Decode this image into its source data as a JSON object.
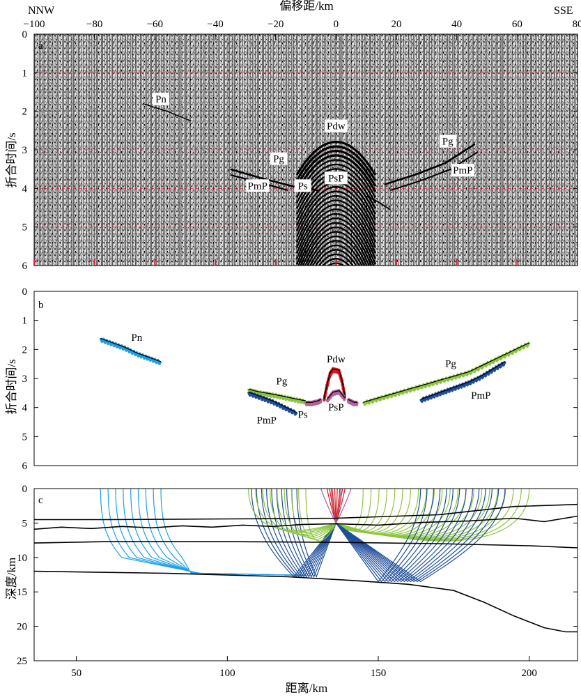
{
  "chart_data": [
    {
      "panel": "a",
      "type": "seismic-section",
      "xlabel": "偏移距/km",
      "ylabel": "折合时间/s",
      "x_ticks": [
        -100,
        -80,
        -60,
        -40,
        -20,
        0,
        20,
        40,
        60,
        80
      ],
      "y_ticks": [
        0,
        1,
        2,
        3,
        4,
        5,
        6
      ],
      "xlim": [
        -100,
        80
      ],
      "ylim": [
        0,
        6
      ],
      "direction_left": "NNW",
      "direction_right": "SSE",
      "grid": "red dashed",
      "phase_labels": [
        {
          "text": "Pn",
          "x": -58,
          "y": 1.75
        },
        {
          "text": "Pdw",
          "x": 0,
          "y": 2.45
        },
        {
          "text": "Pg",
          "x": -19,
          "y": 3.3
        },
        {
          "text": "Pg",
          "x": 37,
          "y": 2.85
        },
        {
          "text": "PmP",
          "x": -26,
          "y": 4.0
        },
        {
          "text": "Ps",
          "x": -11,
          "y": 4.0
        },
        {
          "text": "PsP",
          "x": 0,
          "y": 3.8
        },
        {
          "text": "PmP",
          "x": 42,
          "y": 3.6
        }
      ]
    },
    {
      "panel": "b",
      "type": "line",
      "ylabel": "折合时间/s",
      "y_ticks": [
        0,
        1,
        2,
        3,
        4,
        5,
        6
      ],
      "ylim": [
        0,
        6
      ],
      "xlim": [
        36,
        216
      ],
      "series": [
        {
          "name": "Pn",
          "color": "#1ea0e6",
          "x": [
            58,
            62,
            66,
            70,
            74,
            78
          ],
          "y": [
            1.65,
            1.8,
            1.95,
            2.15,
            2.3,
            2.45
          ]
        },
        {
          "name": "Pg",
          "color": "#8cc63f",
          "x": [
            107,
            110,
            114,
            118,
            122,
            126
          ],
          "y": [
            3.4,
            3.48,
            3.55,
            3.63,
            3.72,
            3.8
          ]
        },
        {
          "name": "PmP",
          "color": "#1f4e9c",
          "x": [
            107,
            111,
            115,
            119,
            123
          ],
          "y": [
            3.5,
            3.65,
            3.8,
            4.0,
            4.2
          ]
        },
        {
          "name": "Pdw",
          "color": "#d7191c",
          "x": [
            132,
            133,
            134,
            135,
            136,
            137,
            138,
            139
          ],
          "y": [
            3.75,
            3.25,
            2.85,
            2.7,
            2.72,
            2.75,
            3.1,
            3.65
          ]
        },
        {
          "name": "PsP",
          "color": "#b3609b",
          "x": [
            133,
            135,
            137,
            139
          ],
          "y": [
            3.75,
            3.5,
            3.45,
            3.7
          ]
        },
        {
          "name": "Ps",
          "color": "#b3609b",
          "x": [
            126,
            128,
            130,
            131
          ],
          "y": [
            3.85,
            3.85,
            3.8,
            3.75
          ]
        },
        {
          "name": "Ps",
          "color": "#b3609b",
          "x": [
            140,
            141,
            142,
            143
          ],
          "y": [
            3.75,
            3.8,
            3.85,
            3.85
          ]
        },
        {
          "name": "Pg",
          "color": "#8cc63f",
          "x": [
            145,
            150,
            155,
            160,
            165,
            170,
            175,
            180,
            185,
            190,
            195,
            200
          ],
          "y": [
            3.85,
            3.7,
            3.55,
            3.4,
            3.25,
            3.1,
            2.95,
            2.8,
            2.55,
            2.3,
            2.05,
            1.8
          ]
        },
        {
          "name": "PmP",
          "color": "#1f4e9c",
          "x": [
            164,
            168,
            172,
            176,
            180,
            184,
            188,
            192
          ],
          "y": [
            3.75,
            3.6,
            3.45,
            3.3,
            3.15,
            2.95,
            2.7,
            2.45
          ]
        }
      ],
      "phase_labels": [
        {
          "text": "Pn",
          "x": 70,
          "y": 1.7
        },
        {
          "text": "Pg",
          "x": 118,
          "y": 3.2
        },
        {
          "text": "PmP",
          "x": 113,
          "y": 4.55
        },
        {
          "text": "Ps",
          "x": 125,
          "y": 4.35
        },
        {
          "text": "Pdw",
          "x": 136,
          "y": 2.45
        },
        {
          "text": "PsP",
          "x": 136,
          "y": 4.1
        },
        {
          "text": "Pg",
          "x": 174,
          "y": 2.6
        },
        {
          "text": "PmP",
          "x": 184,
          "y": 3.7
        }
      ]
    },
    {
      "panel": "c",
      "type": "ray-diagram",
      "xlabel": "距离/km",
      "ylabel": "深度/km",
      "x_ticks": [
        50,
        100,
        150,
        200
      ],
      "y_ticks": [
        0,
        5,
        10,
        15,
        20,
        25
      ],
      "xlim": [
        36,
        216
      ],
      "ylim": [
        0,
        25
      ],
      "source_x": 136,
      "source_depth": 5,
      "interfaces": [
        {
          "x": [
            36,
            60,
            100,
            136,
            170,
            195,
            216
          ],
          "y": [
            4.5,
            4.5,
            4.4,
            4.3,
            3.8,
            2.6,
            2.3
          ]
        },
        {
          "x": [
            36,
            45,
            55,
            65,
            75,
            85,
            95,
            105,
            115,
            125,
            136,
            150,
            165,
            180,
            195,
            205,
            216
          ],
          "y": [
            5.9,
            5.6,
            5.8,
            5.5,
            5.7,
            5.4,
            5.6,
            5.3,
            5.5,
            5.2,
            5.1,
            5.3,
            4.9,
            4.7,
            4.3,
            4.8,
            4.0
          ]
        },
        {
          "x": [
            36,
            60,
            100,
            136,
            170,
            200,
            216
          ],
          "y": [
            7.9,
            7.7,
            7.7,
            7.8,
            8.0,
            8.3,
            8.6
          ]
        },
        {
          "x": [
            36,
            80,
            120,
            140,
            160,
            175,
            185,
            195,
            205,
            212,
            216
          ],
          "y": [
            12.0,
            12.3,
            12.8,
            13.3,
            13.9,
            14.8,
            16.5,
            18.5,
            20.2,
            20.8,
            20.8
          ]
        }
      ],
      "ray_groups": [
        {
          "name": "Pn",
          "color": "#1ea0e6",
          "turn_depth": 12.3,
          "x_start": 58,
          "x_end": 78,
          "count": 9
        },
        {
          "name": "PmP",
          "color": "#1f4e9c",
          "reflect_depth": 12.8,
          "x_start": 108,
          "x_end": 123,
          "count": 10
        },
        {
          "name": "Pg",
          "color": "#8cc63f",
          "x_start": 107,
          "x_end": 126,
          "count": 9
        },
        {
          "name": "Pdw",
          "color": "#d7191c",
          "x_start": 133,
          "x_end": 139,
          "count": 8
        },
        {
          "name": "PsP",
          "color": "#b3609b",
          "x_start": 131,
          "x_end": 141,
          "count": 4
        },
        {
          "name": "Pg",
          "color": "#8cc63f",
          "x_start": 145,
          "x_end": 200,
          "count": 22
        },
        {
          "name": "PmP",
          "color": "#1f4e9c",
          "reflect_depth": 13.5,
          "x_start": 164,
          "x_end": 192,
          "count": 14
        }
      ]
    }
  ]
}
